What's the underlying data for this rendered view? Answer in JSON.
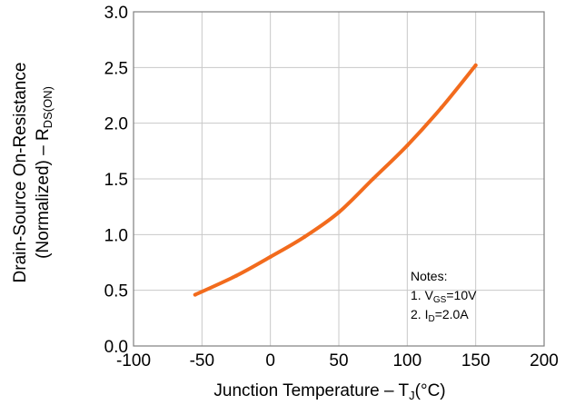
{
  "chart_data": {
    "type": "line",
    "title": "",
    "xlabel": {
      "main": "Junction Temperature  –  T",
      "sub": "J",
      "unit": "(°C)"
    },
    "ylabel": {
      "line1": "Drain-Source On-Resistance",
      "line2_main": "(Normalized)  –  R",
      "line2_sub": "DS(ON)"
    },
    "xlim": [
      -100,
      200
    ],
    "ylim": [
      0.0,
      3.0
    ],
    "x_ticks": [
      -100,
      -50,
      0,
      50,
      100,
      150,
      200
    ],
    "x_tick_labels": [
      "-100",
      "-50",
      "0",
      "50",
      "100",
      "150",
      "200"
    ],
    "y_ticks": [
      0.0,
      0.5,
      1.0,
      1.5,
      2.0,
      2.5,
      3.0
    ],
    "y_tick_labels": [
      "0.0",
      "0.5",
      "1.0",
      "1.5",
      "2.0",
      "2.5",
      "3.0"
    ],
    "grid": true,
    "series": [
      {
        "color": "#f26b1d",
        "x": [
          -55,
          -25,
          0,
          25,
          50,
          75,
          100,
          125,
          150
        ],
        "y": [
          0.46,
          0.63,
          0.8,
          0.98,
          1.2,
          1.5,
          1.8,
          2.14,
          2.52
        ]
      }
    ],
    "notes": {
      "heading": "Notes:",
      "lines": [
        {
          "prefix": "1. V",
          "sub": "GS",
          "suffix": "=10V"
        },
        {
          "prefix": "2. I",
          "sub": "D",
          "suffix": "=2.0A"
        }
      ]
    }
  }
}
